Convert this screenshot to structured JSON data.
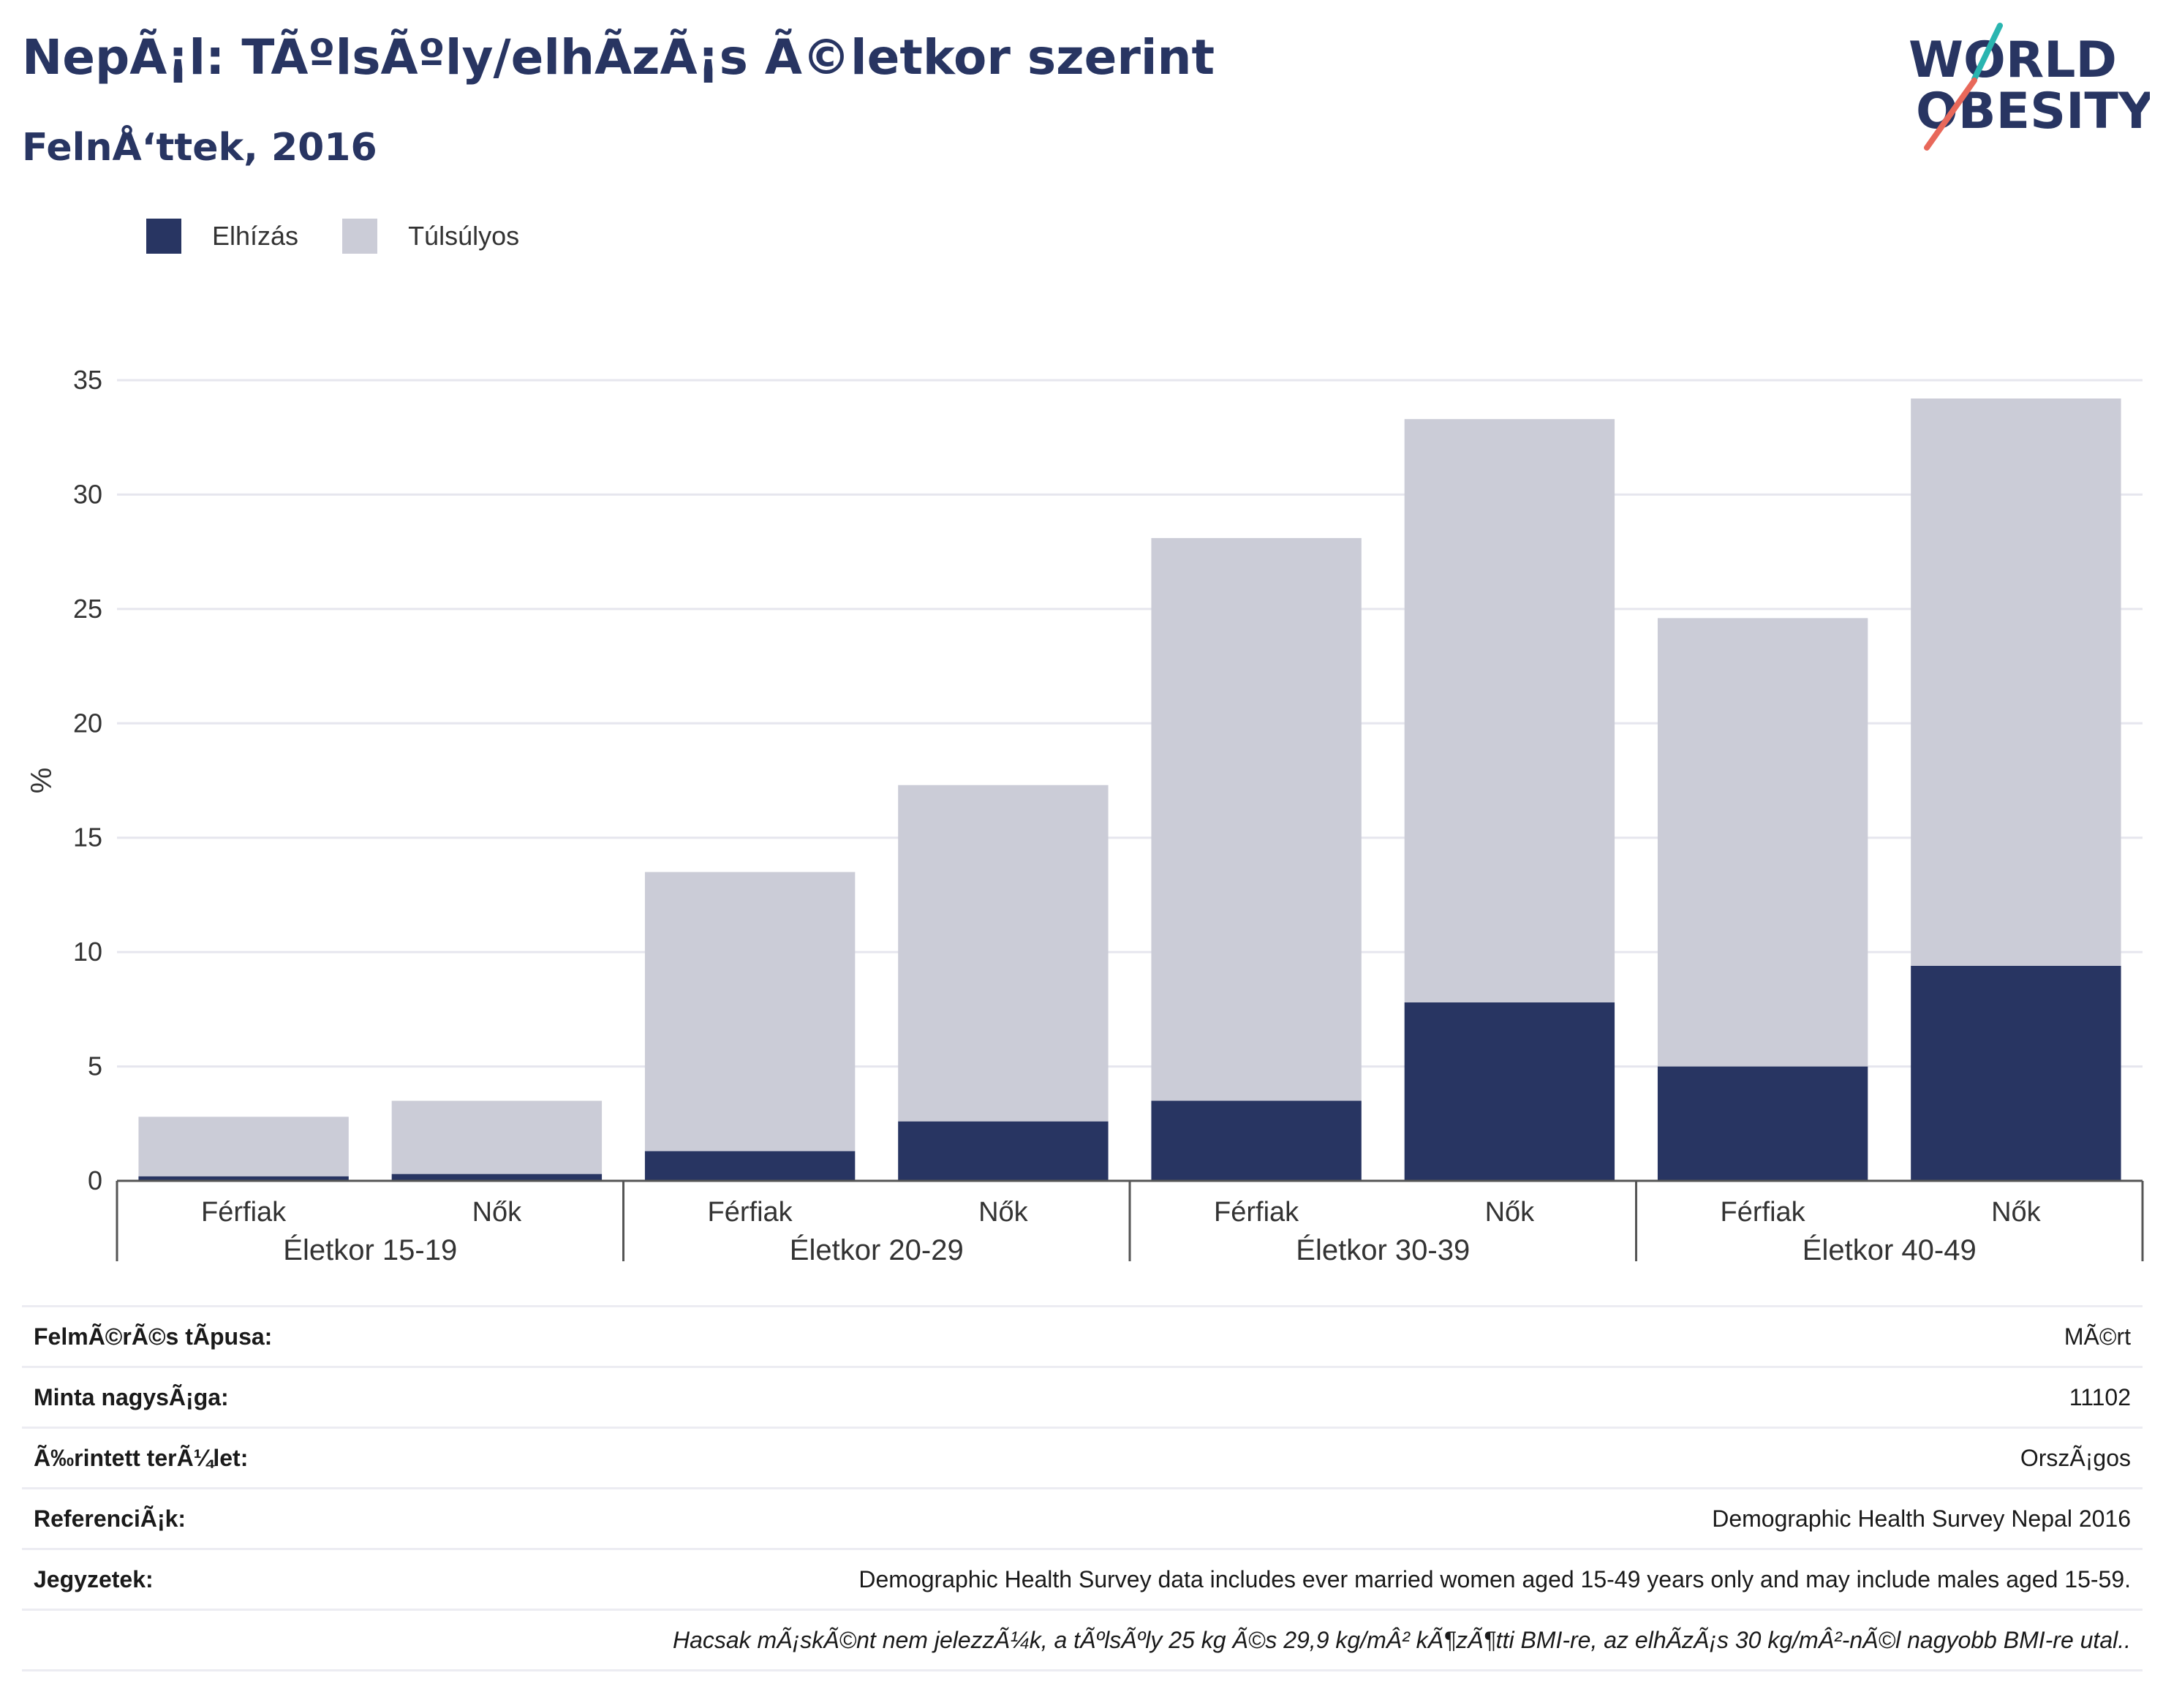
{
  "title": "NepÃ¡l: TÃºlsÃºly/elhÃ­zÃ¡s Ã©letkor szerint",
  "subtitle": "FelnÅ‘ttek, 2016",
  "logo": {
    "line1": "WORLD",
    "line2": "OBESITY",
    "icon": "world-obesity-logo"
  },
  "colors": {
    "obesity": "#283562",
    "overweight": "#cbccd7",
    "grid": "#e6e6ee",
    "axis": "#555555"
  },
  "legend": [
    {
      "label": "Elhízás",
      "color": "#283562"
    },
    {
      "label": "Túlsúlyos",
      "color": "#cbccd7"
    }
  ],
  "chart_data": {
    "type": "bar",
    "stacked": true,
    "ylabel": "%",
    "ylim": [
      0,
      35
    ],
    "yticks": [
      0,
      5,
      10,
      15,
      20,
      25,
      30,
      35
    ],
    "grid": true,
    "legend_position": "top-left",
    "groups": [
      "Életkor 15-19",
      "Életkor 20-29",
      "Életkor 30-39",
      "Életkor 40-49"
    ],
    "categories": [
      "Férfiak",
      "Nők",
      "Férfiak",
      "Nők",
      "Férfiak",
      "Nők",
      "Férfiak",
      "Nők"
    ],
    "series": [
      {
        "name": "Elhízás",
        "values": [
          0.2,
          0.3,
          1.3,
          2.6,
          3.5,
          7.8,
          5.0,
          9.4
        ]
      },
      {
        "name": "Túlsúlyos",
        "values": [
          2.6,
          3.2,
          12.2,
          14.7,
          24.6,
          25.5,
          19.6,
          24.8
        ]
      }
    ]
  },
  "info": [
    {
      "label": "FelmÃ©rÃ©s tÃ­pusa:",
      "value": "MÃ©rt"
    },
    {
      "label": "Minta nagysÃ¡ga:",
      "value": "11102"
    },
    {
      "label": "Ã‰rintett terÃ¼let:",
      "value": "OrszÃ¡gos"
    },
    {
      "label": "ReferenciÃ¡k:",
      "value": "Demographic Health Survey Nepal 2016"
    },
    {
      "label": "Jegyzetek:",
      "value": "Demographic Health Survey data includes ever married women aged 15-49 years only and may include males aged 15-59."
    },
    {
      "label": "",
      "value": "Hacsak mÃ¡skÃ©nt nem jelezzÃ¼k, a tÃºlsÃºly 25 kg Ã©s 29,9 kg/mÂ² kÃ¶zÃ¶tti BMI-re, az elhÃ­zÃ¡s 30 kg/mÂ²-nÃ©l nagyobb BMI-re utal.."
    }
  ]
}
